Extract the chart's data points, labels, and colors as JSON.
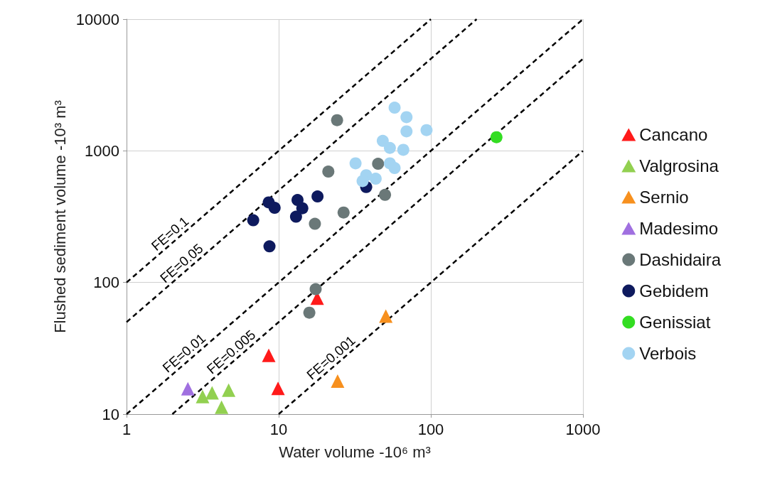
{
  "chart_data": {
    "type": "scatter",
    "xlabel": "Water volume -10⁶ m³",
    "ylabel": "Flushed sediment volume -10³ m³",
    "log": "xy",
    "grid": true,
    "legend": "right",
    "xlim": [
      1,
      1000
    ],
    "xticks": [
      1,
      10,
      100,
      1000
    ],
    "ylim": [
      10,
      10000
    ],
    "yticks": [
      10,
      100,
      1000,
      10000
    ],
    "series": [
      {
        "name": "Cancano",
        "color": "#ff1a1a",
        "marker": "triangle",
        "x": [
          17.9,
          8.6,
          9.9
        ],
        "values": [
          76,
          28,
          15.7
        ]
      },
      {
        "name": "Valgrosina",
        "color": "#92d050",
        "marker": "triangle",
        "x": [
          3.16,
          3.65,
          4.69,
          4.21
        ],
        "values": [
          13.6,
          14.5,
          15.2,
          11.3
        ]
      },
      {
        "name": "Sernio",
        "color": "#f7901e",
        "marker": "triangle",
        "x": [
          50.6,
          24.4
        ],
        "values": [
          55.6,
          17.8
        ]
      },
      {
        "name": "Madesimo",
        "color": "#a070e0",
        "marker": "triangle",
        "x": [
          2.53
        ],
        "values": [
          15.6
        ]
      },
      {
        "name": "Dashidaira",
        "color": "#6a7878",
        "marker": "circle",
        "x": [
          24.2,
          21.2,
          45,
          50,
          26.7,
          17.3,
          17.5,
          15.9
        ],
        "values": [
          1710,
          695,
          797,
          463,
          340,
          279,
          89,
          59
        ]
      },
      {
        "name": "Gebidem",
        "color": "#0e1a5e",
        "marker": "circle",
        "x": [
          6.8,
          8.6,
          9.4,
          8.7,
          13.3,
          14.3,
          13,
          18,
          37.6
        ],
        "values": [
          297,
          406,
          369,
          188,
          423,
          366,
          316,
          450,
          531
        ]
      },
      {
        "name": "Genissiat",
        "color": "#33dd22",
        "marker": "circle",
        "x": [
          270
        ],
        "values": [
          1268
        ]
      },
      {
        "name": "Verbois",
        "color": "#a3d4f2",
        "marker": "circle",
        "x": [
          57.8,
          69.2,
          69.2,
          93.7,
          48.3,
          53.8,
          65.9,
          32,
          53.8,
          57.8,
          37.6,
          43.4,
          35.6
        ],
        "values": [
          2127,
          1803,
          1406,
          1436,
          1191,
          1052,
          1018,
          804,
          804,
          740,
          653,
          614,
          589
        ]
      },
      {
        "type": "line",
        "color": "#000000",
        "line_style": "dashed",
        "marker": "none",
        "x": [
          1,
          100
        ],
        "values": [
          100,
          10000
        ]
      },
      {
        "type": "line",
        "color": "#000000",
        "line_style": "dashed",
        "marker": "none",
        "x": [
          1,
          200
        ],
        "values": [
          50,
          10000
        ]
      },
      {
        "type": "line",
        "color": "#000000",
        "line_style": "dashed",
        "marker": "none",
        "x": [
          1,
          1000
        ],
        "values": [
          10,
          10000
        ]
      },
      {
        "type": "line",
        "color": "#000000",
        "line_style": "dashed",
        "marker": "none",
        "x": [
          2,
          1000
        ],
        "values": [
          10,
          5000
        ]
      },
      {
        "type": "line",
        "color": "#000000",
        "line_style": "dashed",
        "marker": "none",
        "x": [
          10,
          1000
        ],
        "values": [
          10,
          1000
        ]
      }
    ],
    "annotations": [
      {
        "text": "FE=0.1",
        "x": 2.1,
        "y": 210
      },
      {
        "text": "FE=0.05",
        "x": 2.5,
        "y": 125
      },
      {
        "text": "FE=0.01",
        "x": 2.6,
        "y": 26
      },
      {
        "text": "FE=0.005",
        "x": 5.3,
        "y": 26.5
      },
      {
        "text": "FE=0.001",
        "x": 24,
        "y": 24
      }
    ]
  }
}
